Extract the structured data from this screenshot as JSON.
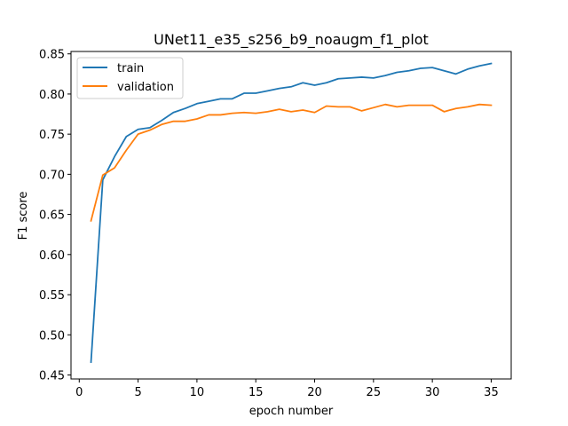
{
  "chart_data": {
    "type": "line",
    "title": "UNet11_e35_s256_b9_noaugm_f1_plot",
    "xlabel": "epoch number",
    "ylabel": "F1 score",
    "xlim": [
      -0.7,
      36.7
    ],
    "ylim": [
      0.445,
      0.853
    ],
    "xticks": [
      0,
      5,
      10,
      15,
      20,
      25,
      30,
      35
    ],
    "yticks": [
      0.45,
      0.5,
      0.55,
      0.6,
      0.65,
      0.7,
      0.75,
      0.8,
      0.85
    ],
    "ytick_labels": [
      "0.45",
      "0.50",
      "0.55",
      "0.60",
      "0.65",
      "0.70",
      "0.75",
      "0.80",
      "0.85"
    ],
    "legend_position": "top-left",
    "grid": false,
    "x": [
      1,
      2,
      3,
      4,
      5,
      6,
      7,
      8,
      9,
      10,
      11,
      12,
      13,
      14,
      15,
      16,
      17,
      18,
      19,
      20,
      21,
      22,
      23,
      24,
      25,
      26,
      27,
      28,
      29,
      30,
      31,
      32,
      33,
      34,
      35
    ],
    "series": [
      {
        "name": "train",
        "color": "#1f77b4",
        "values": [
          0.466,
          0.693,
          0.722,
          0.747,
          0.756,
          0.758,
          0.767,
          0.777,
          0.782,
          0.788,
          0.791,
          0.794,
          0.794,
          0.801,
          0.801,
          0.804,
          0.807,
          0.809,
          0.814,
          0.811,
          0.814,
          0.819,
          0.82,
          0.821,
          0.82,
          0.823,
          0.827,
          0.829,
          0.832,
          0.833,
          0.829,
          0.825,
          0.831,
          0.835,
          0.838
        ]
      },
      {
        "name": "validation",
        "color": "#ff7f0e",
        "values": [
          0.642,
          0.699,
          0.708,
          0.73,
          0.75,
          0.755,
          0.762,
          0.766,
          0.766,
          0.769,
          0.774,
          0.774,
          0.776,
          0.777,
          0.776,
          0.778,
          0.781,
          0.778,
          0.78,
          0.777,
          0.785,
          0.784,
          0.784,
          0.779,
          0.783,
          0.787,
          0.784,
          0.786,
          0.786,
          0.786,
          0.778,
          0.782,
          0.784,
          0.787,
          0.786
        ]
      }
    ]
  }
}
